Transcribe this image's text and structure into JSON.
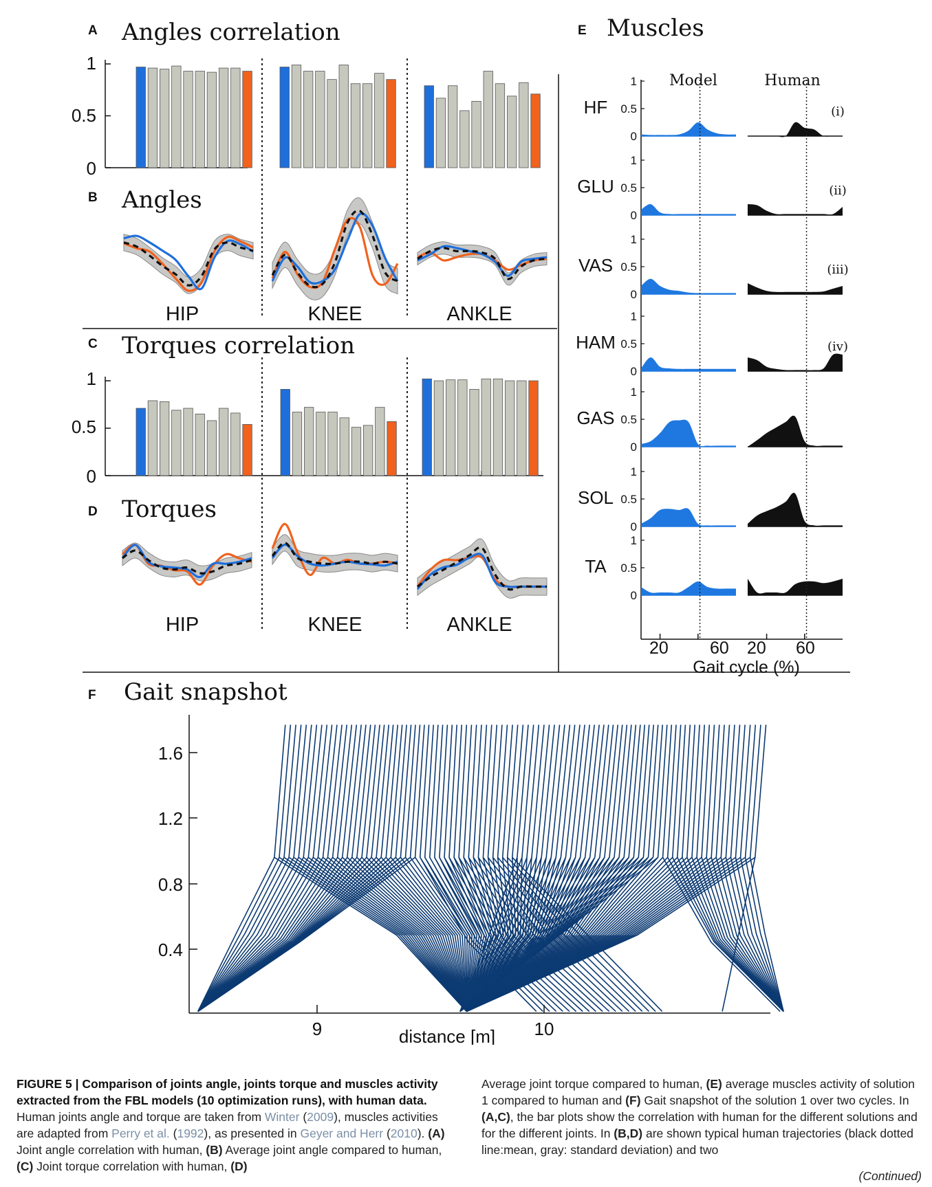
{
  "chart_data": [
    {
      "panel": "A",
      "type": "bar",
      "title": "Angles correlation",
      "ylim": [
        0,
        1
      ],
      "yticks": [
        "0",
        "0.5",
        "1"
      ],
      "groups": [
        {
          "name": "HIP",
          "values": [
            0.97,
            0.96,
            0.95,
            0.98,
            0.93,
            0.93,
            0.92,
            0.96,
            0.96,
            0.93
          ]
        },
        {
          "name": "KNEE",
          "values": [
            0.97,
            0.99,
            0.93,
            0.93,
            0.85,
            0.99,
            0.81,
            0.81,
            0.91,
            0.85
          ]
        },
        {
          "name": "ANKLE",
          "values": [
            0.79,
            0.67,
            0.79,
            0.55,
            0.64,
            0.93,
            0.81,
            0.69,
            0.82,
            0.71
          ]
        }
      ],
      "colors": {
        "first": "#1f6fdb",
        "last": "#f0621e",
        "other": "#c6c7bd"
      }
    },
    {
      "panel": "B",
      "type": "line",
      "title": "Angles",
      "x": [
        0,
        10,
        20,
        30,
        40,
        50,
        60,
        70,
        80,
        90,
        100
      ],
      "groups": [
        {
          "name": "HIP",
          "mean": [
            0.62,
            0.52,
            0.3,
            0.05,
            -0.15,
            -0.42,
            -0.2,
            0.45,
            0.62,
            0.5,
            0.42
          ],
          "sd": 0.2,
          "blue": [
            0.72,
            0.78,
            0.62,
            0.42,
            0.2,
            -0.2,
            -0.5,
            0.25,
            0.65,
            0.58,
            0.4
          ],
          "orange": [
            0.6,
            0.48,
            0.4,
            0.1,
            -0.25,
            -0.55,
            -0.35,
            0.4,
            0.75,
            0.65,
            0.5
          ]
        },
        {
          "name": "KNEE",
          "mean": [
            -0.1,
            0.25,
            -0.05,
            -0.28,
            -0.25,
            0.12,
            0.8,
            1.0,
            0.58,
            -0.05,
            -0.2
          ],
          "sd": 0.22,
          "blue": [
            -0.2,
            0.2,
            0.05,
            -0.22,
            -0.2,
            0.0,
            0.5,
            0.95,
            0.75,
            0.2,
            -0.2
          ],
          "orange": [
            -0.15,
            0.3,
            -0.08,
            -0.3,
            -0.22,
            0.35,
            0.85,
            0.72,
            -0.1,
            -0.25,
            0.1
          ]
        },
        {
          "name": "ANKLE",
          "mean": [
            0.3,
            0.55,
            0.65,
            0.55,
            0.55,
            0.5,
            0.3,
            -0.35,
            0.05,
            0.25,
            0.3
          ],
          "sd": 0.2,
          "blue": [
            0.25,
            0.45,
            0.7,
            0.65,
            0.55,
            0.45,
            0.2,
            -0.25,
            0.2,
            0.3,
            0.35
          ],
          "orange": [
            0.35,
            0.5,
            0.25,
            0.35,
            0.45,
            0.45,
            0.25,
            -0.05,
            0.1,
            0.25,
            0.3
          ]
        }
      ]
    },
    {
      "panel": "C",
      "type": "bar",
      "title": "Torques correlation",
      "ylim": [
        0,
        1
      ],
      "yticks": [
        "0",
        "0.5",
        "1"
      ],
      "groups": [
        {
          "name": "HIP",
          "values": [
            0.71,
            0.79,
            0.78,
            0.69,
            0.71,
            0.65,
            0.58,
            0.71,
            0.66,
            0.54
          ]
        },
        {
          "name": "KNEE",
          "values": [
            0.91,
            0.67,
            0.72,
            0.67,
            0.67,
            0.61,
            0.51,
            0.53,
            0.72,
            0.57
          ]
        },
        {
          "name": "ANKLE",
          "values": [
            1.02,
            1.0,
            1.01,
            1.01,
            0.91,
            1.02,
            1.02,
            1.0,
            1.0,
            1.0
          ]
        }
      ],
      "colors": {
        "first": "#1f6fdb",
        "last": "#f0621e",
        "other": "#c6c7bd"
      }
    },
    {
      "panel": "D",
      "type": "line",
      "title": "Torques",
      "x": [
        0,
        10,
        20,
        30,
        40,
        50,
        60,
        70,
        80,
        90,
        100
      ],
      "groups": [
        {
          "name": "HIP",
          "mean": [
            0.2,
            0.4,
            0.15,
            -0.05,
            -0.1,
            -0.05,
            -0.2,
            -0.15,
            0.0,
            0.05,
            0.15
          ],
          "sd": 0.2,
          "blue": [
            0.2,
            0.55,
            0.1,
            -0.02,
            -0.05,
            -0.1,
            -0.3,
            0.05,
            0.05,
            0.1,
            0.2
          ],
          "orange": [
            0.3,
            0.55,
            0.05,
            0.0,
            -0.12,
            -0.15,
            -0.5,
            0.0,
            0.3,
            0.2,
            0.1
          ]
        },
        {
          "name": "KNEE",
          "mean": [
            0.2,
            0.55,
            0.15,
            0.05,
            0.0,
            0.0,
            0.05,
            0.05,
            0.0,
            0.05,
            0.0
          ],
          "sd": 0.22,
          "blue": [
            0.15,
            0.5,
            0.2,
            0.0,
            -0.05,
            0.0,
            0.05,
            0.0,
            -0.02,
            -0.05,
            0.05
          ],
          "orange": [
            0.4,
            1.05,
            0.3,
            -0.3,
            0.15,
            0.0,
            0.1,
            0.0,
            0.0,
            0.05,
            0.0
          ]
        },
        {
          "name": "ANKLE",
          "mean": [
            -0.05,
            0.15,
            0.3,
            0.45,
            0.6,
            0.75,
            0.2,
            -0.1,
            -0.05,
            -0.05,
            -0.05
          ],
          "sd": 0.18,
          "blue": [
            -0.1,
            0.2,
            0.35,
            0.4,
            0.55,
            0.6,
            0.05,
            -0.05,
            -0.05,
            -0.05,
            -0.05
          ],
          "orange": [
            -0.05,
            0.3,
            0.5,
            0.5,
            0.55,
            0.55,
            0.1,
            -0.05,
            -0.05,
            -0.05,
            -0.05
          ]
        }
      ]
    },
    {
      "panel": "E",
      "type": "area",
      "title": "Muscles",
      "columns": [
        "Model",
        "Human"
      ],
      "xlabel": "Gait cycle (%)",
      "xticks": [
        "20",
        "60"
      ],
      "yticks": [
        "0",
        "0.5",
        "1"
      ],
      "x": [
        0,
        10,
        20,
        30,
        40,
        50,
        60,
        70,
        80,
        90,
        100
      ],
      "stance_end": 62,
      "rows": [
        {
          "name": "HF",
          "label": "(i)",
          "model": [
            0.03,
            0.02,
            0.02,
            0.02,
            0.03,
            0.1,
            0.25,
            0.12,
            0.05,
            0.03,
            0.03
          ],
          "human": [
            0,
            0,
            0,
            0,
            0,
            0.25,
            0.15,
            0.12,
            0,
            0,
            0
          ]
        },
        {
          "name": "GLU",
          "label": "(ii)",
          "model": [
            0.1,
            0.2,
            0.05,
            0.02,
            0.02,
            0.02,
            0.02,
            0.02,
            0.02,
            0.02,
            0.02
          ],
          "human": [
            0.2,
            0.18,
            0.08,
            0.02,
            0.02,
            0.02,
            0.02,
            0.02,
            0.02,
            0.02,
            0.15
          ]
        },
        {
          "name": "VAS",
          "label": "(iii)",
          "model": [
            0.15,
            0.28,
            0.15,
            0.08,
            0.06,
            0.03,
            0.02,
            0.02,
            0.02,
            0.02,
            0.02
          ],
          "human": [
            0.2,
            0.12,
            0.06,
            0.04,
            0.04,
            0.04,
            0.04,
            0.04,
            0.05,
            0.1,
            0.15
          ]
        },
        {
          "name": "HAM",
          "label": "(iv)",
          "model": [
            0.05,
            0.25,
            0.08,
            0.05,
            0.04,
            0.04,
            0.04,
            0.04,
            0.04,
            0.04,
            0.04
          ],
          "human": [
            0.25,
            0.2,
            0.08,
            0.04,
            0.02,
            0.02,
            0.02,
            0.02,
            0.05,
            0.3,
            0.3
          ]
        },
        {
          "name": "GAS",
          "label": "",
          "model": [
            0.05,
            0.1,
            0.25,
            0.45,
            0.48,
            0.45,
            0.05,
            0.02,
            0.02,
            0.02,
            0.02
          ],
          "human": [
            0,
            0.12,
            0.25,
            0.35,
            0.45,
            0.55,
            0.1,
            0.02,
            0.02,
            0.02,
            0.02
          ]
        },
        {
          "name": "SOL",
          "label": "",
          "model": [
            0.05,
            0.15,
            0.3,
            0.32,
            0.3,
            0.32,
            0.05,
            0.02,
            0.02,
            0.02,
            0.02
          ],
          "human": [
            0.05,
            0.2,
            0.28,
            0.35,
            0.45,
            0.6,
            0.1,
            0.02,
            0.02,
            0.02,
            0.02
          ]
        },
        {
          "name": "TA",
          "label": "",
          "model": [
            0.15,
            0.05,
            0.05,
            0.05,
            0.05,
            0.15,
            0.25,
            0.15,
            0.12,
            0.12,
            0.12
          ],
          "human": [
            0.3,
            0.05,
            0.05,
            0.05,
            0.05,
            0.2,
            0.25,
            0.25,
            0.22,
            0.25,
            0.3
          ]
        }
      ]
    },
    {
      "panel": "F",
      "type": "line",
      "title": "Gait snapshot",
      "xlabel": "distance [m]",
      "xticks": [
        "9",
        "10"
      ],
      "yticks": [
        "0.4",
        "0.8",
        "1.2",
        "1.6"
      ],
      "xlim": [
        8.43,
        11.09
      ],
      "ylim": [
        0.05,
        1.85
      ],
      "snapshot": {
        "frames": 100,
        "x_start": 8.85,
        "x_end": 11.05,
        "head_height": 1.79,
        "hip_height": 0.99,
        "cycles": 2
      },
      "color": "#0c3a72"
    }
  ],
  "caption": {
    "title": "FIGURE 5 | Comparison of joints angle, joints torque and muscles activity extracted from the FBL models (10 optimization runs), with human data.",
    "s1": " Human joints angle and torque are taken from ",
    "c1": "Winter",
    "s2": " (",
    "c2": "2009",
    "s3": "), muscles activities are adapted from ",
    "c3": "Perry et al.",
    "s4": " (",
    "c4": "1992",
    "s5": "), as presented in ",
    "c5": "Geyer and Herr",
    "s6": " (",
    "c6": "2010",
    "s7": "). ",
    "bA": "(A)",
    "s8": " Joint angle correlation with human, ",
    "bB": "(B)",
    "s9": " Average joint angle compared to human, ",
    "bC": "(C)",
    "s10": " Joint torque correlation with human, ",
    "bD": "(D)",
    "r1": "Average joint torque compared to human, ",
    "bE": "(E)",
    "r2": " average muscles activity of solution 1 compared to human and ",
    "bF": "(F)",
    "r3": " Gait snapshot of the solution 1 over two cycles. In ",
    "bAC": "(A,C)",
    "r4": ", the bar plots show the correlation with human for the different solutions and for the different joints. In ",
    "bBD": "(B,D)",
    "r5": " are shown typical human trajectories (black dotted line:mean, gray: standard deviation) and two",
    "continued": "(Continued)"
  }
}
